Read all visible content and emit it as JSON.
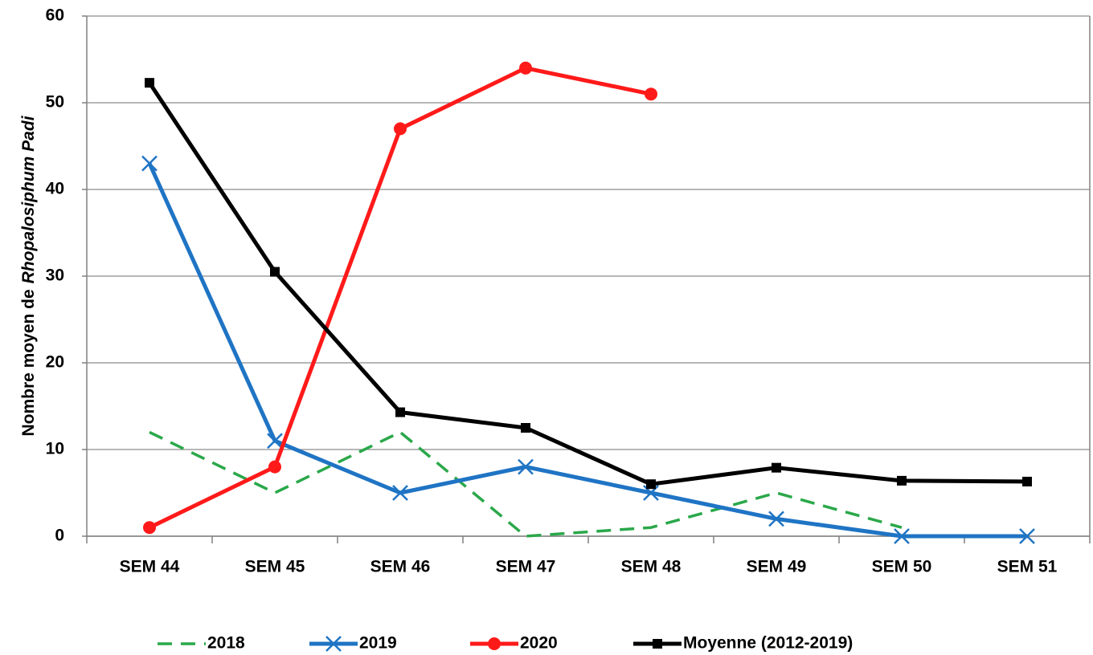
{
  "chart_data": {
    "type": "line",
    "y_label": {
      "text": "Nombre moyen de",
      "italic": "Rhopalosiphum Padi"
    },
    "categories": [
      "SEM 44",
      "SEM 45",
      "SEM 46",
      "SEM 47",
      "SEM 48",
      "SEM 49",
      "SEM 50",
      "SEM 51"
    ],
    "series": [
      {
        "name": "2018",
        "color": "#2aa84a",
        "dash": true,
        "marker": "none",
        "values": [
          12,
          5,
          12,
          0,
          1,
          5,
          1,
          null
        ]
      },
      {
        "name": "2019",
        "color": "#1f74c4",
        "dash": false,
        "marker": "x",
        "values": [
          43,
          11,
          5,
          8,
          5,
          2,
          0,
          0
        ]
      },
      {
        "name": "2020",
        "color": "#ff1a1a",
        "dash": false,
        "marker": "circle",
        "values": [
          1,
          8,
          47,
          54,
          51,
          null,
          null,
          null
        ]
      },
      {
        "name": "Moyenne (2012-2019)",
        "color": "#000000",
        "dash": false,
        "marker": "square",
        "values": [
          52.3,
          30.5,
          14.3,
          12.5,
          6,
          7.9,
          6.4,
          6.3
        ]
      }
    ],
    "ylim": [
      0,
      60
    ],
    "yticks": [
      0,
      10,
      20,
      30,
      40,
      50,
      60
    ],
    "grid": true,
    "legend": "bottom"
  }
}
